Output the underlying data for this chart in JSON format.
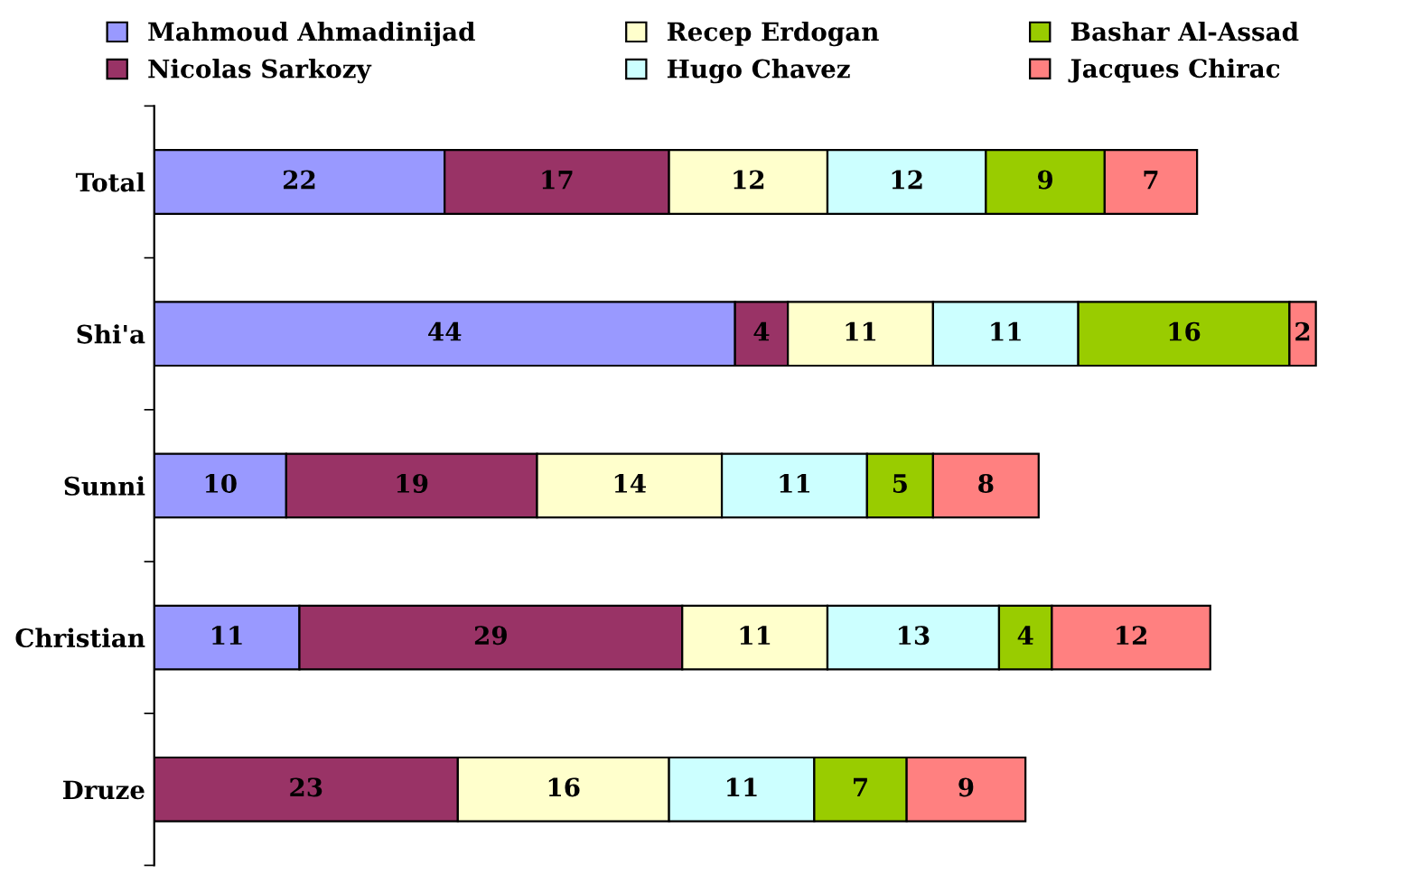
{
  "chart_data": {
    "type": "bar",
    "orientation": "horizontal",
    "stacked": true,
    "data_labels": true,
    "legend": "top",
    "grid": false,
    "categories": [
      "Total",
      "Shi'a",
      "Sunni",
      "Christian",
      "Druze"
    ],
    "series": [
      {
        "name": "Mahmoud Ahmadinijad",
        "color": "#9999ff",
        "values": [
          22,
          44,
          10,
          11,
          null
        ]
      },
      {
        "name": "Nicolas Sarkozy",
        "color": "#993366",
        "values": [
          17,
          4,
          19,
          29,
          23
        ]
      },
      {
        "name": "Recep Erdogan",
        "color": "#ffffcc",
        "values": [
          12,
          11,
          14,
          11,
          16
        ]
      },
      {
        "name": "Hugo Chavez",
        "color": "#ccffff",
        "values": [
          12,
          11,
          11,
          13,
          11
        ]
      },
      {
        "name": "Bashar Al-Assad",
        "color": "#99cc00",
        "values": [
          9,
          16,
          5,
          4,
          7
        ]
      },
      {
        "name": "Jacques Chirac",
        "color": "#ff8080",
        "values": [
          7,
          2,
          8,
          12,
          9
        ]
      }
    ]
  }
}
